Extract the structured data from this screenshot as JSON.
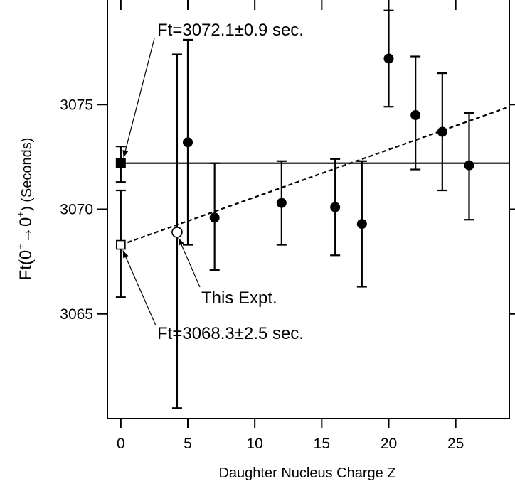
{
  "chart_data": {
    "type": "scatter",
    "title": "",
    "xlabel": "Daughter Nucleus Charge Z",
    "ylabel": {
      "prefix": "Ft(0",
      "sup1": "+",
      "arrow": "→0",
      "sup2": "+",
      "suffix": ") (Seconds)"
    },
    "xlim": [
      -1,
      29
    ],
    "ylim": [
      3060.0,
      3080.0
    ],
    "x_ticks": [
      0,
      5,
      10,
      15,
      20,
      25
    ],
    "y_ticks": [
      3065,
      3070,
      3075
    ],
    "grid": false,
    "series": [
      {
        "marker": "filled-circle",
        "points": [
          {
            "x": 5,
            "y": 3073.2,
            "err_low": 3068.3,
            "err_high": 3078.1
          },
          {
            "x": 7,
            "y": 3069.6,
            "err_low": 3067.1,
            "err_high": 3072.2
          },
          {
            "x": 12,
            "y": 3070.3,
            "err_low": 3068.3,
            "err_high": 3072.3
          },
          {
            "x": 16,
            "y": 3070.1,
            "err_low": 3067.8,
            "err_high": 3072.4
          },
          {
            "x": 18,
            "y": 3069.3,
            "err_low": 3066.3,
            "err_high": 3072.3
          },
          {
            "x": 20,
            "y": 3077.2,
            "err_low": 3074.9,
            "err_high": 3079.5
          },
          {
            "x": 22,
            "y": 3074.5,
            "err_low": 3071.9,
            "err_high": 3077.3
          },
          {
            "x": 24,
            "y": 3073.7,
            "err_low": 3070.9,
            "err_high": 3076.5
          },
          {
            "x": 26,
            "y": 3072.1,
            "err_low": 3069.5,
            "err_high": 3074.6
          }
        ]
      },
      {
        "marker": "open-circle",
        "points": [
          {
            "x": 4.2,
            "y": 3068.9,
            "err_low": 3060.5,
            "err_high": 3077.4
          }
        ]
      },
      {
        "marker": "filled-square",
        "points": [
          {
            "x": 0,
            "y": 3072.2,
            "err_low": 3071.3,
            "err_high": 3073.0
          }
        ]
      },
      {
        "marker": "open-square",
        "points": [
          {
            "x": 0,
            "y": 3068.3,
            "err_low": 3065.8,
            "err_high": 3070.9
          }
        ]
      }
    ],
    "lines": [
      {
        "style": "solid",
        "from": {
          "x": 0,
          "y": 3072.2
        },
        "to": {
          "x": 29,
          "y": 3072.2
        }
      },
      {
        "style": "dashed",
        "from": {
          "x": 0,
          "y": 3068.3
        },
        "to": {
          "x": 29,
          "y": 3074.9
        }
      }
    ],
    "annotations": [
      {
        "text": "Ft=3072.1±0.9 sec.",
        "points_to": {
          "x": 0,
          "y": 3072.2
        }
      },
      {
        "text": "This Expt.",
        "points_to": {
          "x": 4.2,
          "y": 3068.9
        }
      },
      {
        "text": "Ft=3068.3±2.5 sec.",
        "points_to": {
          "x": 0,
          "y": 3068.3
        }
      }
    ]
  }
}
